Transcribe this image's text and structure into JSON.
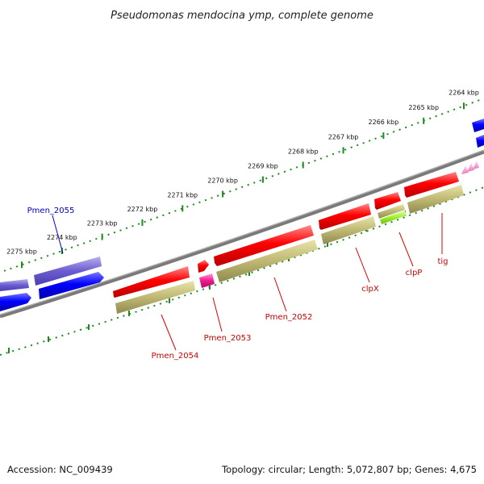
{
  "title": "Pseudomonas mendocina ymp, complete genome",
  "footer": {
    "accession": "Accession: NC_009439",
    "summary": "Topology: circular; Length: 5,072,807 bp; Genes: 4,675"
  },
  "colors": {
    "backbone": "#808080",
    "tick": "#1c8c1c",
    "cds_forward": "#ff0000",
    "cds_reverse": "#0000ff",
    "orthology": "#c2bc74",
    "label_forward": "#cc0000",
    "label_reverse": "#0000cc"
  },
  "scale": {
    "unit": "kbp",
    "ticks": [
      {
        "kbp": 2264,
        "label": "2264 kbp"
      },
      {
        "kbp": 2265,
        "label": "2265 kbp"
      },
      {
        "kbp": 2266,
        "label": "2266 kbp"
      },
      {
        "kbp": 2267,
        "label": "2267 kbp"
      },
      {
        "kbp": 2268,
        "label": "2268 kbp"
      },
      {
        "kbp": 2269,
        "label": "2269 kbp"
      },
      {
        "kbp": 2270,
        "label": "2270 kbp"
      },
      {
        "kbp": 2271,
        "label": "2271 kbp"
      },
      {
        "kbp": 2272,
        "label": "2272 kbp"
      },
      {
        "kbp": 2273,
        "label": "2273 kbp"
      },
      {
        "kbp": 2274,
        "label": "2274 kbp"
      },
      {
        "kbp": 2275,
        "label": "2275 kbp"
      }
    ]
  },
  "genes": {
    "labels": [
      {
        "id": "pmen2055",
        "text": "Pmen_2055",
        "strand": "reverse"
      },
      {
        "id": "pmen2054",
        "text": "Pmen_2054",
        "strand": "forward"
      },
      {
        "id": "pmen2053",
        "text": "Pmen_2053",
        "strand": "forward"
      },
      {
        "id": "pmen2052",
        "text": "Pmen_2052",
        "strand": "forward"
      },
      {
        "id": "clpx",
        "text": "clpX",
        "strand": "forward"
      },
      {
        "id": "clpp",
        "text": "clpP",
        "strand": "forward"
      },
      {
        "id": "tig",
        "text": "tig",
        "strand": "forward"
      }
    ]
  }
}
